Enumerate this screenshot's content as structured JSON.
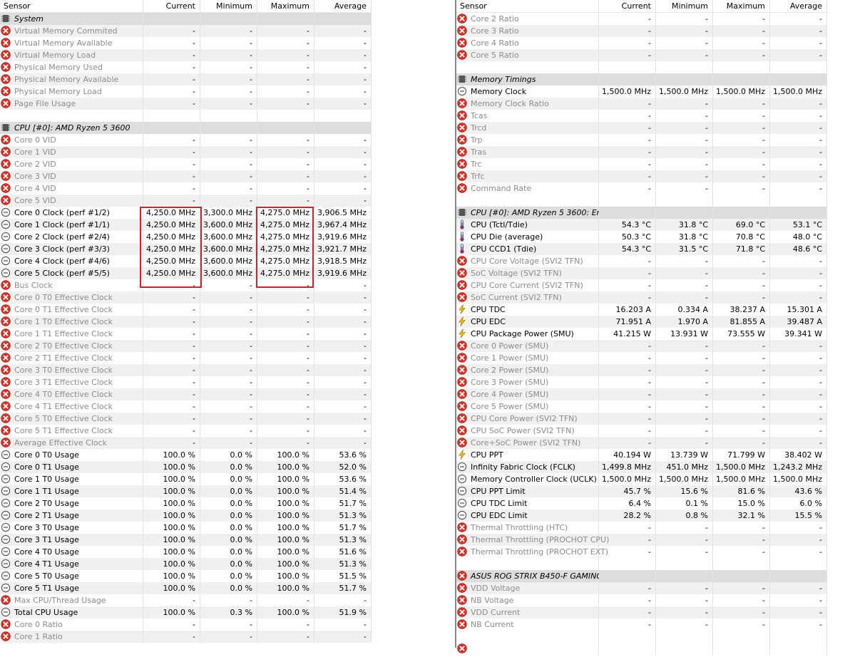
{
  "columns": {
    "sensor": "Sensor",
    "current": "Current",
    "minimum": "Minimum",
    "maximum": "Maximum",
    "average": "Average"
  },
  "left_rows": [
    {
      "type": "group",
      "icon": "chip-icon",
      "name": "System"
    },
    {
      "type": "na",
      "icon": "error-icon",
      "name": "Virtual Memory Commited",
      "cur": "-",
      "min": "-",
      "max": "-",
      "avg": "-"
    },
    {
      "type": "na",
      "icon": "error-icon",
      "name": "Virtual Memory Available",
      "cur": "-",
      "min": "-",
      "max": "-",
      "avg": "-"
    },
    {
      "type": "na",
      "icon": "error-icon",
      "name": "Virtual Memory Load",
      "cur": "-",
      "min": "-",
      "max": "-",
      "avg": "-"
    },
    {
      "type": "na",
      "icon": "error-icon",
      "name": "Physical Memory Used",
      "cur": "-",
      "min": "-",
      "max": "-",
      "avg": "-"
    },
    {
      "type": "na",
      "icon": "error-icon",
      "name": "Physical Memory Available",
      "cur": "-",
      "min": "-",
      "max": "-",
      "avg": "-"
    },
    {
      "type": "na",
      "icon": "error-icon",
      "name": "Physical Memory Load",
      "cur": "-",
      "min": "-",
      "max": "-",
      "avg": "-"
    },
    {
      "type": "na",
      "icon": "error-icon",
      "name": "Page File Usage",
      "cur": "-",
      "min": "-",
      "max": "-",
      "avg": "-"
    },
    {
      "type": "blank"
    },
    {
      "type": "group",
      "icon": "chip-icon",
      "name": "CPU [#0]: AMD Ryzen 5 3600"
    },
    {
      "type": "na",
      "icon": "error-icon",
      "name": "Core 0 VID",
      "cur": "-",
      "min": "-",
      "max": "-",
      "avg": "-"
    },
    {
      "type": "na",
      "icon": "error-icon",
      "name": "Core 1 VID",
      "cur": "-",
      "min": "-",
      "max": "-",
      "avg": "-"
    },
    {
      "type": "na",
      "icon": "error-icon",
      "name": "Core 2 VID",
      "cur": "-",
      "min": "-",
      "max": "-",
      "avg": "-"
    },
    {
      "type": "na",
      "icon": "error-icon",
      "name": "Core 3 VID",
      "cur": "-",
      "min": "-",
      "max": "-",
      "avg": "-"
    },
    {
      "type": "na",
      "icon": "error-icon",
      "name": "Core 4 VID",
      "cur": "-",
      "min": "-",
      "max": "-",
      "avg": "-"
    },
    {
      "type": "na",
      "icon": "error-icon",
      "name": "Core 5 VID",
      "cur": "-",
      "min": "-",
      "max": "-",
      "avg": "-"
    },
    {
      "type": "val",
      "icon": "clock-icon",
      "name": "Core 0 Clock (perf #1/2)",
      "cur": "4,250.0 MHz",
      "min": "3,300.0 MHz",
      "max": "4,275.0 MHz",
      "avg": "3,906.5 MHz"
    },
    {
      "type": "val",
      "icon": "clock-icon",
      "name": "Core 1 Clock (perf #1/1)",
      "cur": "4,250.0 MHz",
      "min": "3,600.0 MHz",
      "max": "4,275.0 MHz",
      "avg": "3,967.4 MHz"
    },
    {
      "type": "val",
      "icon": "clock-icon",
      "name": "Core 2 Clock (perf #2/4)",
      "cur": "4,250.0 MHz",
      "min": "3,600.0 MHz",
      "max": "4,275.0 MHz",
      "avg": "3,919.6 MHz"
    },
    {
      "type": "val",
      "icon": "clock-icon",
      "name": "Core 3 Clock (perf #3/3)",
      "cur": "4,250.0 MHz",
      "min": "3,600.0 MHz",
      "max": "4,275.0 MHz",
      "avg": "3,921.7 MHz"
    },
    {
      "type": "val",
      "icon": "clock-icon",
      "name": "Core 4 Clock (perf #4/6)",
      "cur": "4,250.0 MHz",
      "min": "3,600.0 MHz",
      "max": "4,275.0 MHz",
      "avg": "3,918.5 MHz"
    },
    {
      "type": "val",
      "icon": "clock-icon",
      "name": "Core 5 Clock (perf #5/5)",
      "cur": "4,250.0 MHz",
      "min": "3,600.0 MHz",
      "max": "4,275.0 MHz",
      "avg": "3,919.6 MHz"
    },
    {
      "type": "na",
      "icon": "error-icon",
      "name": "Bus Clock",
      "cur": "-",
      "min": "-",
      "max": "-",
      "avg": "-"
    },
    {
      "type": "na",
      "icon": "error-icon",
      "name": "Core 0 T0 Effective Clock",
      "cur": "-",
      "min": "-",
      "max": "-",
      "avg": "-"
    },
    {
      "type": "na",
      "icon": "error-icon",
      "name": "Core 0 T1 Effective Clock",
      "cur": "-",
      "min": "-",
      "max": "-",
      "avg": "-"
    },
    {
      "type": "na",
      "icon": "error-icon",
      "name": "Core 1 T0 Effective Clock",
      "cur": "-",
      "min": "-",
      "max": "-",
      "avg": "-"
    },
    {
      "type": "na",
      "icon": "error-icon",
      "name": "Core 1 T1 Effective Clock",
      "cur": "-",
      "min": "-",
      "max": "-",
      "avg": "-"
    },
    {
      "type": "na",
      "icon": "error-icon",
      "name": "Core 2 T0 Effective Clock",
      "cur": "-",
      "min": "-",
      "max": "-",
      "avg": "-"
    },
    {
      "type": "na",
      "icon": "error-icon",
      "name": "Core 2 T1 Effective Clock",
      "cur": "-",
      "min": "-",
      "max": "-",
      "avg": "-"
    },
    {
      "type": "na",
      "icon": "error-icon",
      "name": "Core 3 T0 Effective Clock",
      "cur": "-",
      "min": "-",
      "max": "-",
      "avg": "-"
    },
    {
      "type": "na",
      "icon": "error-icon",
      "name": "Core 3 T1 Effective Clock",
      "cur": "-",
      "min": "-",
      "max": "-",
      "avg": "-"
    },
    {
      "type": "na",
      "icon": "error-icon",
      "name": "Core 4 T0 Effective Clock",
      "cur": "-",
      "min": "-",
      "max": "-",
      "avg": "-"
    },
    {
      "type": "na",
      "icon": "error-icon",
      "name": "Core 4 T1 Effective Clock",
      "cur": "-",
      "min": "-",
      "max": "-",
      "avg": "-"
    },
    {
      "type": "na",
      "icon": "error-icon",
      "name": "Core 5 T0 Effective Clock",
      "cur": "-",
      "min": "-",
      "max": "-",
      "avg": "-"
    },
    {
      "type": "na",
      "icon": "error-icon",
      "name": "Core 5 T1 Effective Clock",
      "cur": "-",
      "min": "-",
      "max": "-",
      "avg": "-"
    },
    {
      "type": "na",
      "icon": "error-icon",
      "name": "Average Effective Clock",
      "cur": "-",
      "min": "-",
      "max": "-",
      "avg": "-"
    },
    {
      "type": "val",
      "icon": "clock-icon",
      "name": "Core 0 T0 Usage",
      "cur": "100.0 %",
      "min": "0.0 %",
      "max": "100.0 %",
      "avg": "53.6 %"
    },
    {
      "type": "val",
      "icon": "clock-icon",
      "name": "Core 0 T1 Usage",
      "cur": "100.0 %",
      "min": "0.0 %",
      "max": "100.0 %",
      "avg": "52.0 %"
    },
    {
      "type": "val",
      "icon": "clock-icon",
      "name": "Core 1 T0 Usage",
      "cur": "100.0 %",
      "min": "0.0 %",
      "max": "100.0 %",
      "avg": "53.6 %"
    },
    {
      "type": "val",
      "icon": "clock-icon",
      "name": "Core 1 T1 Usage",
      "cur": "100.0 %",
      "min": "0.0 %",
      "max": "100.0 %",
      "avg": "51.4 %"
    },
    {
      "type": "val",
      "icon": "clock-icon",
      "name": "Core 2 T0 Usage",
      "cur": "100.0 %",
      "min": "0.0 %",
      "max": "100.0 %",
      "avg": "51.7 %"
    },
    {
      "type": "val",
      "icon": "clock-icon",
      "name": "Core 2 T1 Usage",
      "cur": "100.0 %",
      "min": "0.0 %",
      "max": "100.0 %",
      "avg": "51.3 %"
    },
    {
      "type": "val",
      "icon": "clock-icon",
      "name": "Core 3 T0 Usage",
      "cur": "100.0 %",
      "min": "0.0 %",
      "max": "100.0 %",
      "avg": "51.7 %"
    },
    {
      "type": "val",
      "icon": "clock-icon",
      "name": "Core 3 T1 Usage",
      "cur": "100.0 %",
      "min": "0.0 %",
      "max": "100.0 %",
      "avg": "51.3 %"
    },
    {
      "type": "val",
      "icon": "clock-icon",
      "name": "Core 4 T0 Usage",
      "cur": "100.0 %",
      "min": "0.0 %",
      "max": "100.0 %",
      "avg": "51.6 %"
    },
    {
      "type": "val",
      "icon": "clock-icon",
      "name": "Core 4 T1 Usage",
      "cur": "100.0 %",
      "min": "0.0 %",
      "max": "100.0 %",
      "avg": "51.3 %"
    },
    {
      "type": "val",
      "icon": "clock-icon",
      "name": "Core 5 T0 Usage",
      "cur": "100.0 %",
      "min": "0.0 %",
      "max": "100.0 %",
      "avg": "51.5 %"
    },
    {
      "type": "val",
      "icon": "clock-icon",
      "name": "Core 5 T1 Usage",
      "cur": "100.0 %",
      "min": "0.0 %",
      "max": "100.0 %",
      "avg": "51.7 %"
    },
    {
      "type": "na",
      "icon": "error-icon",
      "name": "Max CPU/Thread Usage",
      "cur": "-",
      "min": "-",
      "max": "-",
      "avg": "-"
    },
    {
      "type": "val",
      "icon": "clock-icon",
      "name": "Total CPU Usage",
      "cur": "100.0 %",
      "min": "0.3 %",
      "max": "100.0 %",
      "avg": "51.9 %"
    },
    {
      "type": "na",
      "icon": "error-icon",
      "name": "Core 0 Ratio",
      "cur": "-",
      "min": "-",
      "max": "-",
      "avg": "-"
    },
    {
      "type": "na",
      "icon": "error-icon",
      "name": "Core 1 Ratio",
      "cur": "-",
      "min": "-",
      "max": "-",
      "avg": "-"
    }
  ],
  "right_rows": [
    {
      "type": "na",
      "icon": "error-icon",
      "name": "Core 2 Ratio",
      "cur": "-",
      "min": "-",
      "max": "-",
      "avg": "-"
    },
    {
      "type": "na",
      "icon": "error-icon",
      "name": "Core 3 Ratio",
      "cur": "-",
      "min": "-",
      "max": "-",
      "avg": "-"
    },
    {
      "type": "na",
      "icon": "error-icon",
      "name": "Core 4 Ratio",
      "cur": "-",
      "min": "-",
      "max": "-",
      "avg": "-"
    },
    {
      "type": "na",
      "icon": "error-icon",
      "name": "Core 5 Ratio",
      "cur": "-",
      "min": "-",
      "max": "-",
      "avg": "-"
    },
    {
      "type": "blank"
    },
    {
      "type": "group",
      "icon": "chip-icon",
      "name": "Memory Timings"
    },
    {
      "type": "val",
      "icon": "clock-icon",
      "name": "Memory Clock",
      "cur": "1,500.0 MHz",
      "min": "1,500.0 MHz",
      "max": "1,500.0 MHz",
      "avg": "1,500.0 MHz"
    },
    {
      "type": "na",
      "icon": "error-icon",
      "name": "Memory Clock Ratio",
      "cur": "-",
      "min": "-",
      "max": "-",
      "avg": "-"
    },
    {
      "type": "na",
      "icon": "error-icon",
      "name": "Tcas",
      "cur": "-",
      "min": "-",
      "max": "-",
      "avg": "-"
    },
    {
      "type": "na",
      "icon": "error-icon",
      "name": "Trcd",
      "cur": "-",
      "min": "-",
      "max": "-",
      "avg": "-"
    },
    {
      "type": "na",
      "icon": "error-icon",
      "name": "Trp",
      "cur": "-",
      "min": "-",
      "max": "-",
      "avg": "-"
    },
    {
      "type": "na",
      "icon": "error-icon",
      "name": "Tras",
      "cur": "-",
      "min": "-",
      "max": "-",
      "avg": "-"
    },
    {
      "type": "na",
      "icon": "error-icon",
      "name": "Trc",
      "cur": "-",
      "min": "-",
      "max": "-",
      "avg": "-"
    },
    {
      "type": "na",
      "icon": "error-icon",
      "name": "Trfc",
      "cur": "-",
      "min": "-",
      "max": "-",
      "avg": "-"
    },
    {
      "type": "na",
      "icon": "error-icon",
      "name": "Command Rate",
      "cur": "-",
      "min": "-",
      "max": "-",
      "avg": "-"
    },
    {
      "type": "blank"
    },
    {
      "type": "group",
      "icon": "chip-icon",
      "name": "CPU [#0]: AMD Ryzen 5 3600: En..."
    },
    {
      "type": "val",
      "icon": "thermometer-icon",
      "name": "CPU (Tctl/Tdie)",
      "cur": "54.3 °C",
      "min": "31.8 °C",
      "max": "69.0 °C",
      "avg": "53.1 °C"
    },
    {
      "type": "val",
      "icon": "thermometer-icon",
      "name": "CPU Die (average)",
      "cur": "50.3 °C",
      "min": "31.8 °C",
      "max": "70.8 °C",
      "avg": "48.0 °C"
    },
    {
      "type": "val",
      "icon": "thermometer-icon",
      "name": "CPU CCD1 (Tdie)",
      "cur": "54.3 °C",
      "min": "31.5 °C",
      "max": "71.8 °C",
      "avg": "48.6 °C"
    },
    {
      "type": "na",
      "icon": "error-icon",
      "name": "CPU Core Voltage (SVI2 TFN)",
      "cur": "-",
      "min": "-",
      "max": "-",
      "avg": "-"
    },
    {
      "type": "na",
      "icon": "error-icon",
      "name": "SoC Voltage (SVI2 TFN)",
      "cur": "-",
      "min": "-",
      "max": "-",
      "avg": "-"
    },
    {
      "type": "na",
      "icon": "error-icon",
      "name": "CPU Core Current (SVI2 TFN)",
      "cur": "-",
      "min": "-",
      "max": "-",
      "avg": "-"
    },
    {
      "type": "na",
      "icon": "error-icon",
      "name": "SoC Current (SVI2 TFN)",
      "cur": "-",
      "min": "-",
      "max": "-",
      "avg": "-"
    },
    {
      "type": "val",
      "icon": "lightning-icon",
      "name": "CPU TDC",
      "cur": "16.203 A",
      "min": "0.334 A",
      "max": "38.237 A",
      "avg": "15.301 A"
    },
    {
      "type": "val",
      "icon": "lightning-icon",
      "name": "CPU EDC",
      "cur": "71.951 A",
      "min": "1.970 A",
      "max": "81.855 A",
      "avg": "39.487 A"
    },
    {
      "type": "val",
      "icon": "lightning-icon",
      "name": "CPU Package Power (SMU)",
      "cur": "41.215 W",
      "min": "13.931 W",
      "max": "73.555 W",
      "avg": "39.341 W"
    },
    {
      "type": "na",
      "icon": "error-icon",
      "name": "Core 0 Power (SMU)",
      "cur": "-",
      "min": "-",
      "max": "-",
      "avg": "-"
    },
    {
      "type": "na",
      "icon": "error-icon",
      "name": "Core 1 Power (SMU)",
      "cur": "-",
      "min": "-",
      "max": "-",
      "avg": "-"
    },
    {
      "type": "na",
      "icon": "error-icon",
      "name": "Core 2 Power (SMU)",
      "cur": "-",
      "min": "-",
      "max": "-",
      "avg": "-"
    },
    {
      "type": "na",
      "icon": "error-icon",
      "name": "Core 3 Power (SMU)",
      "cur": "-",
      "min": "-",
      "max": "-",
      "avg": "-"
    },
    {
      "type": "na",
      "icon": "error-icon",
      "name": "Core 4 Power (SMU)",
      "cur": "-",
      "min": "-",
      "max": "-",
      "avg": "-"
    },
    {
      "type": "na",
      "icon": "error-icon",
      "name": "Core 5 Power (SMU)",
      "cur": "-",
      "min": "-",
      "max": "-",
      "avg": "-"
    },
    {
      "type": "na",
      "icon": "error-icon",
      "name": "CPU Core Power (SVI2 TFN)",
      "cur": "-",
      "min": "-",
      "max": "-",
      "avg": "-"
    },
    {
      "type": "na",
      "icon": "error-icon",
      "name": "CPU SoC Power (SVI2 TFN)",
      "cur": "-",
      "min": "-",
      "max": "-",
      "avg": "-"
    },
    {
      "type": "na",
      "icon": "error-icon",
      "name": "Core+SoC Power (SVI2 TFN)",
      "cur": "-",
      "min": "-",
      "max": "-",
      "avg": "-"
    },
    {
      "type": "val",
      "icon": "lightning-icon",
      "name": "CPU PPT",
      "cur": "40.194 W",
      "min": "13.739 W",
      "max": "71.799 W",
      "avg": "38.402 W"
    },
    {
      "type": "val",
      "icon": "clock-icon",
      "name": "Infinity Fabric Clock (FCLK)",
      "cur": "1,499.8 MHz",
      "min": "451.0 MHz",
      "max": "1,500.0 MHz",
      "avg": "1,243.2 MHz"
    },
    {
      "type": "val",
      "icon": "clock-icon",
      "name": "Memory Controller Clock (UCLK)",
      "cur": "1,500.0 MHz",
      "min": "1,500.0 MHz",
      "max": "1,500.0 MHz",
      "avg": "1,500.0 MHz"
    },
    {
      "type": "val",
      "icon": "clock-icon",
      "name": "CPU PPT Limit",
      "cur": "45.7 %",
      "min": "15.6 %",
      "max": "81.6 %",
      "avg": "43.6 %"
    },
    {
      "type": "val",
      "icon": "clock-icon",
      "name": "CPU TDC Limit",
      "cur": "6.4 %",
      "min": "0.1 %",
      "max": "15.0 %",
      "avg": "6.0 %"
    },
    {
      "type": "val",
      "icon": "clock-icon",
      "name": "CPU EDC Limit",
      "cur": "28.2 %",
      "min": "0.8 %",
      "max": "32.1 %",
      "avg": "15.5 %"
    },
    {
      "type": "na",
      "icon": "error-icon",
      "name": "Thermal Throttling (HTC)",
      "cur": "-",
      "min": "-",
      "max": "-",
      "avg": "-"
    },
    {
      "type": "na",
      "icon": "error-icon",
      "name": "Thermal Throttling (PROCHOT CPU)",
      "cur": "-",
      "min": "-",
      "max": "-",
      "avg": "-"
    },
    {
      "type": "na",
      "icon": "error-icon",
      "name": "Thermal Throttling (PROCHOT EXT)",
      "cur": "-",
      "min": "-",
      "max": "-",
      "avg": "-"
    },
    {
      "type": "blank"
    },
    {
      "type": "group",
      "icon": "error-icon",
      "name": "ASUS ROG STRIX B450-F GAMING..."
    },
    {
      "type": "na",
      "icon": "error-icon",
      "name": "VDD Voltage",
      "cur": "-",
      "min": "-",
      "max": "-",
      "avg": "-"
    },
    {
      "type": "na",
      "icon": "error-icon",
      "name": "NB Voltage",
      "cur": "-",
      "min": "-",
      "max": "-",
      "avg": "-"
    },
    {
      "type": "na",
      "icon": "error-icon",
      "name": "VDD Current",
      "cur": "-",
      "min": "-",
      "max": "-",
      "avg": "-"
    },
    {
      "type": "na",
      "icon": "error-icon",
      "name": "NB Current",
      "cur": "-",
      "min": "-",
      "max": "-",
      "avg": "-"
    },
    {
      "type": "blank"
    },
    {
      "type": "na",
      "icon": "error-icon",
      "name": "",
      "cur": "",
      "min": "",
      "max": "",
      "avg": ""
    }
  ],
  "colors": {
    "error": "#d9342b",
    "highlight": "#d5222a",
    "thermometer": "#3060c0",
    "lightning": "#e8b400"
  }
}
